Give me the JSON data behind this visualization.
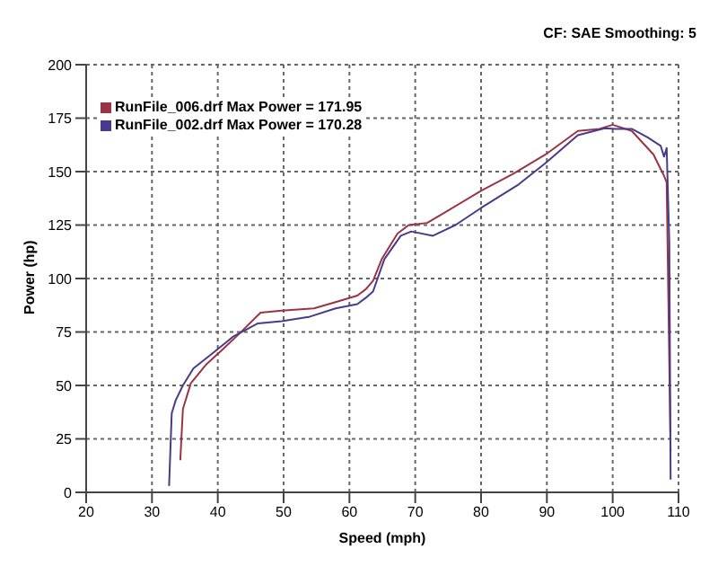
{
  "chart_data": {
    "type": "line",
    "xlabel": "Speed (mph)",
    "ylabel": "Power (hp)",
    "annotations": [
      "CF: SAE  Smoothing: 5"
    ],
    "xlim": [
      20,
      110
    ],
    "xticks": [
      20,
      30,
      40,
      50,
      60,
      70,
      80,
      90,
      100,
      110
    ],
    "ylim": [
      0,
      200
    ],
    "yticks": [
      0,
      25,
      50,
      75,
      100,
      125,
      150,
      175,
      200
    ],
    "grid": true,
    "legend": "top left",
    "marker": "none",
    "line_style": "solid",
    "series": [
      {
        "name": "RunFile_006.drf Max Power = 171.95",
        "color": "#9a3444",
        "x": [
          34.3,
          34.7,
          35.9,
          38.3,
          40.8,
          43.2,
          46.5,
          49.7,
          54.6,
          57.9,
          61.2,
          62.5,
          63.6,
          64.9,
          67.3,
          69.0,
          71.8,
          75.1,
          80,
          84.9,
          89.8,
          94.7,
          98,
          100,
          102.9,
          106.2,
          107.8,
          108.2,
          108.8
        ],
        "values": [
          15,
          39,
          51,
          60,
          67,
          74,
          84,
          85,
          86,
          89,
          92,
          95,
          99,
          109,
          121,
          125,
          126,
          132,
          141,
          149,
          158,
          169,
          170,
          171.9,
          169,
          158,
          148,
          145,
          19
        ]
      },
      {
        "name": "RunFile_002.drf Max Power = 170.28",
        "color": "#4a3a8a",
        "x": [
          32.6,
          33.0,
          33.6,
          34.7,
          36.3,
          39.2,
          42.4,
          46.1,
          49.7,
          53.8,
          57.9,
          61.2,
          62.5,
          63.6,
          65.3,
          67.8,
          69.4,
          72.7,
          76.1,
          80,
          85.7,
          89.8,
          94.7,
          98.8,
          100.4,
          102.9,
          105.3,
          107.3,
          107.8,
          108.2,
          108.6,
          108.8
        ],
        "values": [
          3,
          37,
          43,
          50,
          58,
          65,
          73,
          79,
          80,
          82,
          86,
          88,
          91,
          94,
          109,
          120,
          122,
          120,
          125,
          133,
          144,
          154,
          167,
          170.3,
          170,
          170,
          166,
          162,
          157,
          161,
          117,
          6
        ]
      }
    ]
  }
}
